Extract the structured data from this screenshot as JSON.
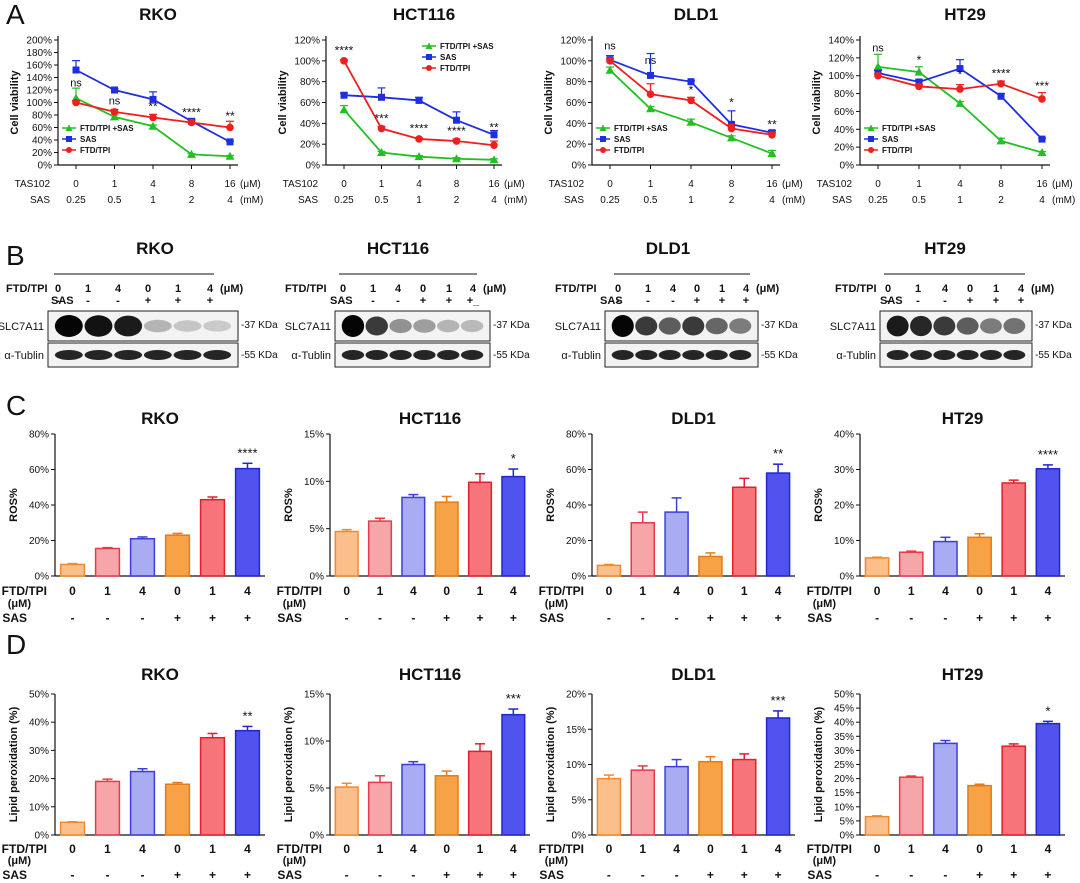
{
  "panels": [
    "A",
    "B",
    "C",
    "D"
  ],
  "cell_lines": [
    "RKO",
    "HCT116",
    "DLD1",
    "HT29"
  ],
  "colors": {
    "ftd_sas": "#22c022",
    "sas": "#1f2fe0",
    "ftd": "#ee1f1f",
    "bar_fill": [
      "#fbbf8c",
      "#f6a6a8",
      "#a9abf3",
      "#f7a246",
      "#f7747a",
      "#5053ee"
    ],
    "bar_edge": [
      "#f08a30",
      "#e8394a",
      "#3b3fd8",
      "#e77a14",
      "#e21f2a",
      "#2226d0"
    ]
  },
  "chart_data": [
    {
      "type": "line",
      "panel": "A",
      "title": "RKO",
      "ylabel": "Cell viability",
      "ylim": [
        0,
        2.0
      ],
      "yticks": [
        "0%",
        "20%",
        "40%",
        "60%",
        "80%",
        "100%",
        "120%",
        "140%",
        "160%",
        "180%",
        "200%"
      ],
      "x_row1_label": "TAS102",
      "x_row1": [
        "0",
        "1",
        "4",
        "8",
        "16"
      ],
      "x_row1_unit": "(μM)",
      "x_row2_label": "SAS",
      "x_row2": [
        "0.25",
        "0.5",
        "1",
        "2",
        "4"
      ],
      "x_row2_unit": "(mM)",
      "series": [
        {
          "name": "FTD/TPI +SAS",
          "color": "#22c022",
          "marker": "triangle",
          "values": [
            1.07,
            0.77,
            0.62,
            0.17,
            0.14
          ],
          "err": [
            0.16,
            0.03,
            0.02,
            0.01,
            0.01
          ]
        },
        {
          "name": "SAS",
          "color": "#1f2fe0",
          "marker": "square",
          "values": [
            1.52,
            1.2,
            1.05,
            0.7,
            0.37
          ],
          "err": [
            0.15,
            0.02,
            0.12,
            0.03,
            0.01
          ]
        },
        {
          "name": "FTD/TPI",
          "color": "#ee1f1f",
          "marker": "circle",
          "values": [
            1.0,
            0.85,
            0.76,
            0.68,
            0.6
          ],
          "err": [
            0.03,
            0.04,
            0.05,
            0.03,
            0.1
          ]
        }
      ],
      "annotations": [
        {
          "x": 0,
          "y": 1.26,
          "text": "ns"
        },
        {
          "x": 1,
          "y": 0.97,
          "text": "ns"
        },
        {
          "x": 2,
          "y": 0.87,
          "text": "**"
        },
        {
          "x": 3,
          "y": 0.78,
          "text": "****"
        },
        {
          "x": 4,
          "y": 0.72,
          "text": "**"
        }
      ],
      "legend_pos": "bottom-left"
    },
    {
      "type": "line",
      "panel": "A",
      "title": "HCT116",
      "ylabel": "Cell viability",
      "ylim": [
        0,
        1.2
      ],
      "yticks": [
        "0%",
        "20%",
        "40%",
        "60%",
        "80%",
        "100%",
        "120%"
      ],
      "x_row1_label": "TAS102",
      "x_row1": [
        "0",
        "1",
        "4",
        "8",
        "16"
      ],
      "x_row1_unit": "(μM)",
      "x_row2_label": "SAS",
      "x_row2": [
        "0.25",
        "0.5",
        "1",
        "2",
        "4"
      ],
      "x_row2_unit": "(mM)",
      "series": [
        {
          "name": "FTD/TPI +SAS",
          "color": "#22c022",
          "marker": "triangle",
          "values": [
            0.53,
            0.12,
            0.08,
            0.06,
            0.05
          ],
          "err": [
            0.04,
            0.01,
            0.01,
            0.01,
            0.01
          ]
        },
        {
          "name": "SAS",
          "color": "#1f2fe0",
          "marker": "square",
          "values": [
            0.67,
            0.65,
            0.62,
            0.43,
            0.29
          ],
          "err": [
            0.02,
            0.09,
            0.03,
            0.08,
            0.04
          ]
        },
        {
          "name": "FTD/TPI",
          "color": "#ee1f1f",
          "marker": "circle",
          "values": [
            1.0,
            0.35,
            0.25,
            0.23,
            0.19
          ],
          "err": [
            0.01,
            0.02,
            0.01,
            0.02,
            0.04
          ]
        }
      ],
      "annotations": [
        {
          "x": 0,
          "y": 1.06,
          "text": "****"
        },
        {
          "x": 1,
          "y": 0.41,
          "text": "***"
        },
        {
          "x": 2,
          "y": 0.31,
          "text": "****"
        },
        {
          "x": 3,
          "y": 0.29,
          "text": "****"
        },
        {
          "x": 4,
          "y": 0.32,
          "text": "**"
        }
      ],
      "legend_pos": "top-right"
    },
    {
      "type": "line",
      "panel": "A",
      "title": "DLD1",
      "ylabel": "Cell viability",
      "ylim": [
        0,
        1.2
      ],
      "yticks": [
        "0%",
        "20%",
        "40%",
        "60%",
        "80%",
        "100%",
        "120%"
      ],
      "x_row1_label": "TAS102",
      "x_row1": [
        "0",
        "1",
        "4",
        "8",
        "16"
      ],
      "x_row1_unit": "(μM)",
      "x_row2_label": "SAS",
      "x_row2": [
        "0.25",
        "0.5",
        "1",
        "2",
        "4"
      ],
      "x_row2_unit": "(mM)",
      "series": [
        {
          "name": "FTD/TPI +SAS",
          "color": "#22c022",
          "marker": "triangle",
          "values": [
            0.91,
            0.54,
            0.41,
            0.26,
            0.11
          ],
          "err": [
            0.03,
            0.02,
            0.03,
            0.02,
            0.03
          ]
        },
        {
          "name": "SAS",
          "color": "#1f2fe0",
          "marker": "square",
          "values": [
            1.01,
            0.86,
            0.8,
            0.39,
            0.31
          ],
          "err": [
            0.04,
            0.21,
            0.01,
            0.13,
            0.02
          ]
        },
        {
          "name": "FTD/TPI",
          "color": "#ee1f1f",
          "marker": "circle",
          "values": [
            1.0,
            0.68,
            0.62,
            0.35,
            0.29
          ],
          "err": [
            0.02,
            0.1,
            0.03,
            0.04,
            0.02
          ]
        }
      ],
      "annotations": [
        {
          "x": 0,
          "y": 1.11,
          "text": "ns"
        },
        {
          "x": 1,
          "y": 0.97,
          "text": "ns"
        },
        {
          "x": 2,
          "y": 0.68,
          "text": "*"
        },
        {
          "x": 3,
          "y": 0.56,
          "text": "*"
        },
        {
          "x": 4,
          "y": 0.35,
          "text": "**"
        }
      ],
      "legend_pos": "bottom-left"
    },
    {
      "type": "line",
      "panel": "A",
      "title": "HT29",
      "ylabel": "Cell viability",
      "ylim": [
        0,
        1.4
      ],
      "yticks": [
        "0%",
        "20%",
        "40%",
        "60%",
        "80%",
        "100%",
        "120%",
        "140%"
      ],
      "x_row1_label": "TAS102",
      "x_row1": [
        "0",
        "1",
        "4",
        "8",
        "16"
      ],
      "x_row1_unit": "(μM)",
      "x_row2_label": "SAS",
      "x_row2": [
        "0.25",
        "0.5",
        "1",
        "2",
        "4"
      ],
      "x_row2_unit": "(mM)",
      "series": [
        {
          "name": "FTD/TPI +SAS",
          "color": "#22c022",
          "marker": "triangle",
          "values": [
            1.1,
            1.04,
            0.69,
            0.27,
            0.14
          ],
          "err": [
            0.14,
            0.06,
            0.02,
            0.03,
            0.01
          ]
        },
        {
          "name": "SAS",
          "color": "#1f2fe0",
          "marker": "square",
          "values": [
            1.03,
            0.93,
            1.08,
            0.77,
            0.29
          ],
          "err": [
            0.03,
            0.02,
            0.1,
            0.03,
            0.01
          ]
        },
        {
          "name": "FTD/TPI",
          "color": "#ee1f1f",
          "marker": "circle",
          "values": [
            1.0,
            0.88,
            0.85,
            0.91,
            0.74
          ],
          "err": [
            0.02,
            0.02,
            0.05,
            0.03,
            0.07
          ]
        }
      ],
      "annotations": [
        {
          "x": 0,
          "y": 1.27,
          "text": "ns"
        },
        {
          "x": 1,
          "y": 1.13,
          "text": "*"
        },
        {
          "x": 2,
          "y": 0.97,
          "text": "*"
        },
        {
          "x": 3,
          "y": 0.98,
          "text": "****"
        },
        {
          "x": 4,
          "y": 0.84,
          "text": "***"
        }
      ],
      "legend_pos": "bottom-left"
    },
    {
      "type": "bar",
      "panel": "C",
      "title": "RKO",
      "ylabel": "ROS%",
      "ylim": [
        0,
        0.8
      ],
      "yticks": [
        "0%",
        "20%",
        "40%",
        "60%",
        "80%"
      ],
      "row1_label": "FTD/TPI",
      "row1_unit": "(μM)",
      "row1": [
        "0",
        "1",
        "4",
        "0",
        "1",
        "4"
      ],
      "row2_label": "SAS",
      "row2": [
        "-",
        "-",
        "-",
        "+",
        "+",
        "+"
      ],
      "values": [
        0.065,
        0.155,
        0.21,
        0.23,
        0.43,
        0.605
      ],
      "err": [
        0.005,
        0.005,
        0.01,
        0.01,
        0.015,
        0.03
      ],
      "significance": "****"
    },
    {
      "type": "bar",
      "panel": "C",
      "title": "HCT116",
      "ylabel": "ROS%",
      "ylim": [
        0,
        0.15
      ],
      "yticks": [
        "0%",
        "5%",
        "10%",
        "15%"
      ],
      "row1_label": "FTD/TPI",
      "row1_unit": "(μM)",
      "row1": [
        "0",
        "1",
        "4",
        "0",
        "1",
        "4"
      ],
      "row2_label": "SAS",
      "row2": [
        "-",
        "-",
        "-",
        "+",
        "+",
        "+"
      ],
      "values": [
        0.047,
        0.058,
        0.083,
        0.078,
        0.099,
        0.105
      ],
      "err": [
        0.002,
        0.003,
        0.003,
        0.006,
        0.009,
        0.008
      ],
      "significance": "*"
    },
    {
      "type": "bar",
      "panel": "C",
      "title": "DLD1",
      "ylabel": "ROS%",
      "ylim": [
        0,
        0.8
      ],
      "yticks": [
        "0%",
        "20%",
        "40%",
        "60%",
        "80%"
      ],
      "row1_label": "FTD/TPI",
      "row1_unit": "(μM)",
      "row1": [
        "0",
        "1",
        "4",
        "0",
        "1",
        "4"
      ],
      "row2_label": "SAS",
      "row2": [
        "-",
        "-",
        "-",
        "+",
        "+",
        "+"
      ],
      "values": [
        0.06,
        0.3,
        0.36,
        0.11,
        0.5,
        0.58
      ],
      "err": [
        0.005,
        0.06,
        0.08,
        0.02,
        0.05,
        0.05
      ],
      "significance": "**"
    },
    {
      "type": "bar",
      "panel": "C",
      "title": "HT29",
      "ylabel": "ROS%",
      "ylim": [
        0,
        0.4
      ],
      "yticks": [
        "0%",
        "10%",
        "20%",
        "30%",
        "40%"
      ],
      "row1_label": "FTD/TPI",
      "row1_unit": "(μM)",
      "row1": [
        "0",
        "1",
        "4",
        "0",
        "1",
        "4"
      ],
      "row2_label": "SAS",
      "row2": [
        "-",
        "-",
        "-",
        "+",
        "+",
        "+"
      ],
      "values": [
        0.051,
        0.067,
        0.097,
        0.109,
        0.262,
        0.302
      ],
      "err": [
        0.002,
        0.003,
        0.012,
        0.01,
        0.008,
        0.011
      ],
      "significance": "****"
    },
    {
      "type": "bar",
      "panel": "D",
      "title": "RKO",
      "ylabel": "Lipid peroxidation (%)",
      "ylim": [
        0,
        0.5
      ],
      "yticks": [
        "0%",
        "10%",
        "20%",
        "30%",
        "40%",
        "50%"
      ],
      "row1_label": "FTD/TPI",
      "row1_unit": "(μM)",
      "row1": [
        "0",
        "1",
        "4",
        "0",
        "1",
        "4"
      ],
      "row2_label": "SAS",
      "row2": [
        "-",
        "-",
        "-",
        "+",
        "+",
        "+"
      ],
      "values": [
        0.045,
        0.19,
        0.225,
        0.18,
        0.345,
        0.37
      ],
      "err": [
        0.002,
        0.008,
        0.01,
        0.006,
        0.015,
        0.015
      ],
      "significance": "**"
    },
    {
      "type": "bar",
      "panel": "D",
      "title": "HCT116",
      "ylabel": "Lipid peroxidation (%)",
      "ylim": [
        0,
        0.15
      ],
      "yticks": [
        "0%",
        "5%",
        "10%",
        "15%"
      ],
      "row1_label": "FTD/TPI",
      "row1_unit": "(μM)",
      "row1": [
        "0",
        "1",
        "4",
        "0",
        "1",
        "4"
      ],
      "row2_label": "SAS",
      "row2": [
        "-",
        "-",
        "-",
        "+",
        "+",
        "+"
      ],
      "values": [
        0.051,
        0.056,
        0.075,
        0.063,
        0.089,
        0.128
      ],
      "err": [
        0.004,
        0.007,
        0.003,
        0.005,
        0.008,
        0.006
      ],
      "significance": "***"
    },
    {
      "type": "bar",
      "panel": "D",
      "title": "DLD1",
      "ylabel": "Lipid peroxidation (%)",
      "ylim": [
        0,
        0.2
      ],
      "yticks": [
        "0%",
        "5%",
        "10%",
        "15%",
        "20%"
      ],
      "row1_label": "FTD/TPI",
      "row1_unit": "(μM)",
      "row1": [
        "0",
        "1",
        "4",
        "0",
        "1",
        "4"
      ],
      "row2_label": "SAS",
      "row2": [
        "-",
        "-",
        "-",
        "+",
        "+",
        "+"
      ],
      "values": [
        0.08,
        0.092,
        0.097,
        0.104,
        0.107,
        0.166
      ],
      "err": [
        0.005,
        0.006,
        0.01,
        0.007,
        0.008,
        0.01
      ],
      "significance": "***"
    },
    {
      "type": "bar",
      "panel": "D",
      "title": "HT29",
      "ylabel": "Lipid peroxidation (%)",
      "ylim": [
        0,
        0.5
      ],
      "yticks": [
        "0%",
        "5%",
        "10%",
        "15%",
        "20%",
        "25%",
        "30%",
        "35%",
        "40%",
        "45%",
        "50%"
      ],
      "row1_label": "FTD/TPI",
      "row1_unit": "(μM)",
      "row1": [
        "0",
        "1",
        "4",
        "0",
        "1",
        "4"
      ],
      "row2_label": "SAS",
      "row2": [
        "-",
        "-",
        "-",
        "+",
        "+",
        "+"
      ],
      "values": [
        0.065,
        0.205,
        0.325,
        0.175,
        0.315,
        0.395
      ],
      "err": [
        0.003,
        0.004,
        0.01,
        0.005,
        0.008,
        0.008
      ],
      "significance": "*"
    }
  ],
  "western_blots": [
    {
      "title": "RKO",
      "row1_label": "FTD/TPI",
      "row1": [
        "0",
        "1",
        "4",
        "0",
        "1",
        "4"
      ],
      "unit": "(μM)",
      "row2_label": "SAS",
      "row2": [
        "-",
        "-",
        "-",
        "+",
        "+",
        "+"
      ],
      "bands": [
        "SLC7A11",
        "α-Tublin"
      ],
      "markers": [
        "-37 KDa",
        "-55 KDa"
      ],
      "slc_intensity": [
        1.0,
        0.95,
        0.9,
        0.2,
        0.12,
        0.1
      ]
    },
    {
      "title": "HCT116",
      "row1_label": "FTD/TPI",
      "row1": [
        "0",
        "1",
        "4",
        "0",
        "1",
        "4"
      ],
      "unit": "(μM)",
      "row2_label": "SAS",
      "row2": [
        "-",
        "-",
        "-",
        "+",
        "+",
        "+_"
      ],
      "bands": [
        "SLC7A11",
        "α-Tublin"
      ],
      "markers": [
        "-37 KDa",
        "-55 KDa"
      ],
      "slc_intensity": [
        1.0,
        0.75,
        0.35,
        0.3,
        0.2,
        0.18
      ]
    },
    {
      "title": "DLD1",
      "row1_label": "FTD/TPI",
      "row1": [
        "0",
        "1",
        "4",
        "0",
        "1",
        "4"
      ],
      "unit": "(μM)",
      "row2_label": "SAS",
      "row2": [
        "-",
        "-",
        "-",
        "+",
        "+",
        "+"
      ],
      "bands": [
        "SLC7A11",
        "α-Tublin"
      ],
      "markers": [
        "-37 KDa",
        "-55 KDa"
      ],
      "slc_intensity": [
        1.0,
        0.75,
        0.6,
        0.75,
        0.55,
        0.45
      ]
    },
    {
      "title": "HT29",
      "row1_label": "FTD/TPI",
      "row1": [
        "0",
        "1",
        "4",
        "0",
        "1",
        "4"
      ],
      "unit": "(μM)",
      "row2_label": "SAS",
      "row2": [
        "-",
        "-",
        "-",
        "+",
        "+",
        "+"
      ],
      "bands": [
        "SLC7A11",
        "α-Tublin"
      ],
      "markers": [
        "-37 KDa",
        "-55 KDa"
      ],
      "slc_intensity": [
        0.9,
        0.85,
        0.75,
        0.6,
        0.45,
        0.5
      ]
    }
  ]
}
